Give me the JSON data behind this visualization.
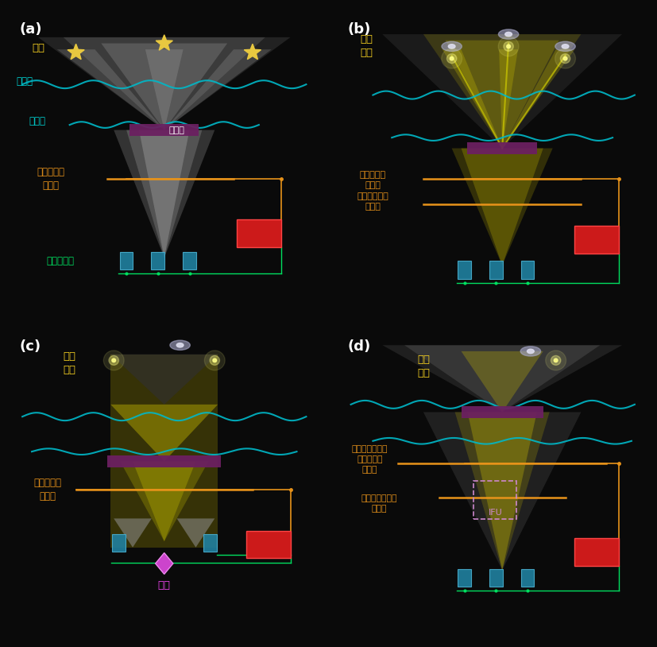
{
  "bg_color": "#0a0a0a",
  "panel_labels": [
    "(a)",
    "(b)",
    "(c)",
    "(d)"
  ],
  "panel_label_color": "#ffffff",
  "panel_label_fontsize": 13,
  "yellow_text_color": "#f5d020",
  "orange_text_color": "#e8931a",
  "cyan_text_color": "#00d4d4",
  "green_text_color": "#00e060",
  "magenta_text_color": "#e040fb",
  "white_text_color": "#ffffff",
  "star_color": "#e8c840",
  "telescope_color": "#6b2060",
  "sensor_color": "#2080a0",
  "red_box_color": "#cc1a1a",
  "wave_color": "#00b8c8",
  "dashed_box_color": "#cc88cc"
}
